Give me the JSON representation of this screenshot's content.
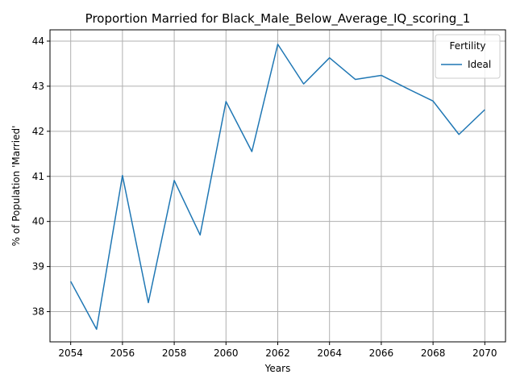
{
  "chart_data": {
    "type": "line",
    "title": "Proportion Married for Black_Male_Below_Average_IQ_scoring_1",
    "xlabel": "Years",
    "ylabel": "% of Population 'Married'",
    "xlim": [
      2053.2,
      2070.8
    ],
    "ylim": [
      37.33,
      44.25
    ],
    "xticks": [
      2054,
      2056,
      2058,
      2060,
      2062,
      2064,
      2066,
      2068,
      2070
    ],
    "yticks": [
      38,
      39,
      40,
      41,
      42,
      43,
      44
    ],
    "grid": true,
    "legend": {
      "title": "Fertility",
      "placement": "upper-right"
    },
    "series": [
      {
        "name": "Ideal",
        "color": "#1f77b4",
        "x": [
          2054,
          2055,
          2056,
          2057,
          2058,
          2059,
          2060,
          2061,
          2062,
          2063,
          2064,
          2065,
          2066,
          2067,
          2068,
          2069,
          2070
        ],
        "y": [
          38.67,
          37.61,
          41.02,
          38.2,
          40.91,
          39.7,
          42.66,
          41.55,
          43.93,
          43.05,
          43.63,
          43.15,
          43.24,
          42.95,
          42.67,
          41.93,
          42.48
        ]
      }
    ]
  }
}
